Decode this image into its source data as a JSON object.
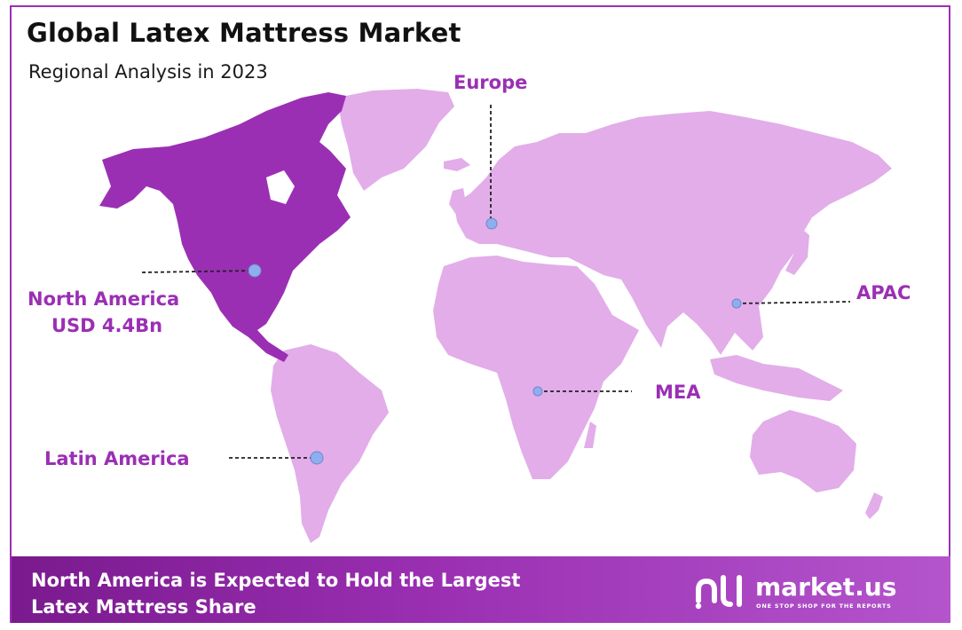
{
  "header": {
    "title": "Global Latex Mattress Market",
    "subtitle": "Regional Analysis in 2023"
  },
  "regions": {
    "north_america": {
      "name": "North America",
      "value": "USD 4.4Bn"
    },
    "europe": {
      "name": "Europe"
    },
    "apac": {
      "name": "APAC"
    },
    "mea": {
      "name": "MEA"
    },
    "latin_america": {
      "name": "Latin America"
    }
  },
  "colors": {
    "highlight": "#9b2fb4",
    "land": "#e2ade9",
    "frame": "#9b2fb4",
    "marker": "#8eaef0"
  },
  "footer": {
    "line1": "North America is Expected to Hold the Largest",
    "line2": "Latex Mattress Share"
  },
  "brand": {
    "name": "market.us",
    "tagline": "ONE STOP SHOP FOR THE REPORTS",
    "icon": "market-us-logo-icon"
  }
}
